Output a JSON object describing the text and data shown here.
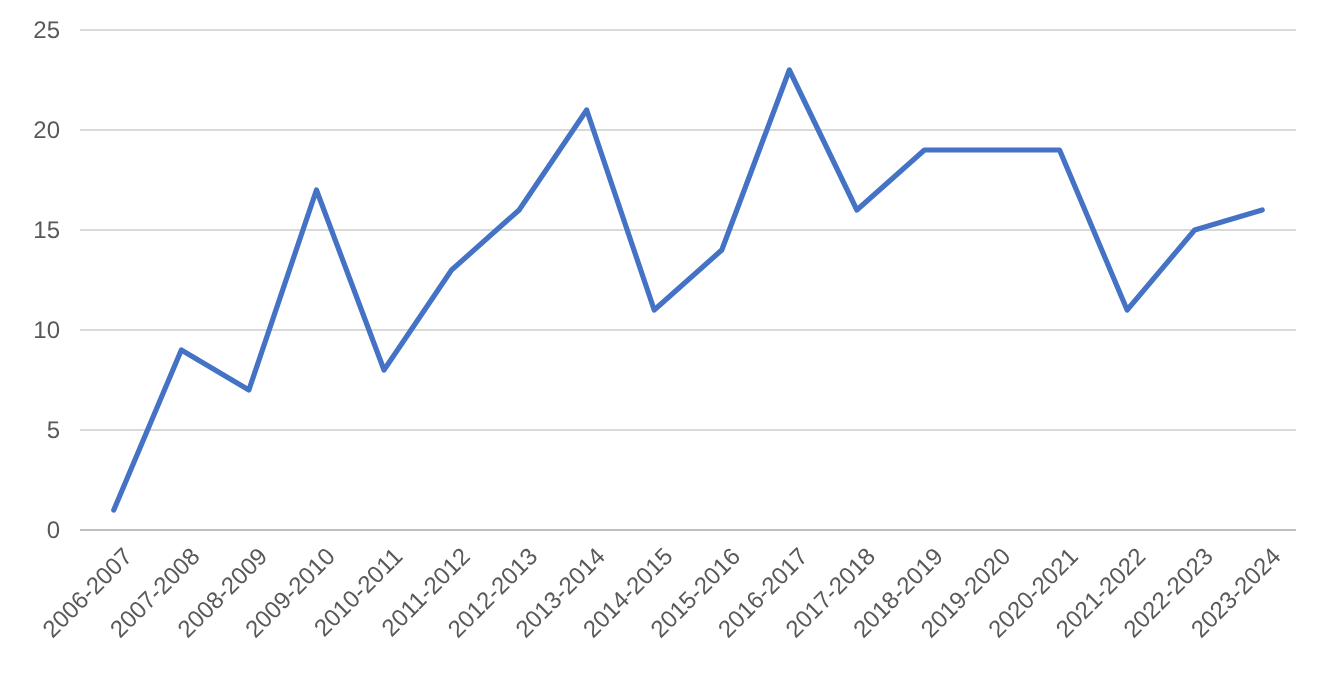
{
  "chart_data": {
    "type": "line",
    "categories": [
      "2006-2007",
      "2007-2008",
      "2008-2009",
      "2009-2010",
      "2010-2011",
      "2011-2012",
      "2012-2013",
      "2013-2014",
      "2014-2015",
      "2015-2016",
      "2016-2017",
      "2017-2018",
      "2018-2019",
      "2019-2020",
      "2020-2021",
      "2021-2022",
      "2022-2023",
      "2023-2024"
    ],
    "series": [
      {
        "color": "#4472c4",
        "values": [
          1,
          9,
          7,
          17,
          8,
          13,
          16,
          21,
          11,
          14,
          23,
          16,
          19,
          19,
          19,
          11,
          15,
          16
        ]
      }
    ],
    "ylim": [
      0,
      25
    ],
    "yticks": [
      0,
      5,
      10,
      15,
      20,
      25
    ],
    "grid": "y",
    "marker": "none",
    "line_style": "solid"
  }
}
